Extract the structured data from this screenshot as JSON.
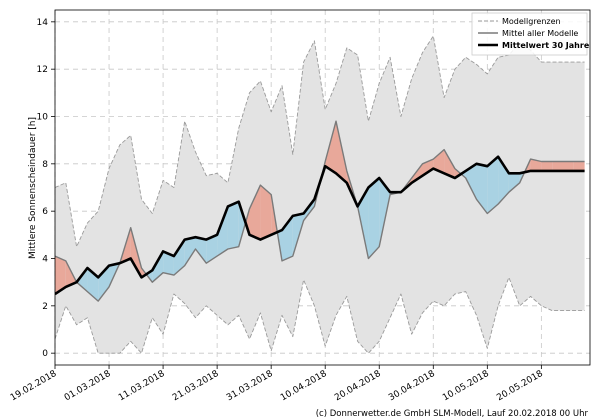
{
  "chart_data": {
    "type": "line",
    "ylabel": "Mittlere Sonnenscheindauer [h]",
    "ylim": [
      -0.5,
      14.5
    ],
    "yticks": [
      0,
      2,
      4,
      6,
      8,
      10,
      12,
      14
    ],
    "xlim": [
      0,
      99
    ],
    "xtick_days": [
      0,
      10,
      20,
      30,
      40,
      50,
      60,
      70,
      80,
      90
    ],
    "xtick_labels": [
      "19.02.2018",
      "01.03.2018",
      "11.03.2018",
      "21.03.2018",
      "31.03.2018",
      "10.04.2018",
      "20.04.2018",
      "30.04.2018",
      "10.05.2018",
      "20.05.2018"
    ],
    "grid": true,
    "legend_position": "top-right",
    "legend": {
      "modellgrenzen": "Modellgrenzen",
      "mittel": "Mittel aller Modelle",
      "mittelwert": "Mittelwert 30 Jahre"
    },
    "credit": "(c) Donnerwetter.de GmbH SLM-Modell, Lauf 20.02.2018 00 Uhr",
    "colors": {
      "band": "#e3e3e3",
      "band_edge": "#9a9a9a",
      "above": "#e8a89a",
      "below": "#a9d2e3",
      "mean_line": "#7a7a7a",
      "clim_line": "#000000",
      "grid": "#c8c8c8"
    },
    "series": [
      {
        "name": "Mittelwert 30 Jahre",
        "x": [
          0,
          2,
          4,
          6,
          8,
          10,
          12,
          14,
          16,
          18,
          20,
          22,
          24,
          26,
          28,
          30,
          32,
          34,
          36,
          38,
          40,
          42,
          44,
          46,
          48,
          50,
          52,
          54,
          56,
          58,
          60,
          62,
          64,
          66,
          68,
          70,
          72,
          74,
          76,
          78,
          80,
          82,
          84,
          86,
          88,
          90,
          92,
          94,
          96,
          98
        ],
        "y": [
          2.5,
          2.8,
          3.0,
          3.6,
          3.2,
          3.7,
          3.8,
          4.0,
          3.2,
          3.5,
          4.3,
          4.1,
          4.8,
          4.9,
          4.8,
          5.0,
          6.2,
          6.4,
          5.0,
          4.8,
          5.0,
          5.2,
          5.8,
          5.9,
          6.5,
          7.9,
          7.6,
          7.2,
          6.2,
          7.0,
          7.4,
          6.8,
          6.8,
          7.2,
          7.5,
          7.8,
          7.6,
          7.4,
          7.7,
          8.0,
          7.9,
          8.3,
          7.6,
          7.6,
          7.7,
          7.7,
          7.7,
          7.7,
          7.7,
          7.7
        ]
      },
      {
        "name": "Mittel aller Modelle",
        "x": [
          0,
          2,
          4,
          6,
          8,
          10,
          12,
          14,
          16,
          18,
          20,
          22,
          24,
          26,
          28,
          30,
          32,
          34,
          36,
          38,
          40,
          42,
          44,
          46,
          48,
          50,
          52,
          54,
          56,
          58,
          60,
          62,
          64,
          66,
          68,
          70,
          72,
          74,
          76,
          78,
          80,
          82,
          84,
          86,
          88,
          90,
          92,
          94,
          96,
          98
        ],
        "y": [
          4.1,
          3.9,
          3.0,
          2.6,
          2.2,
          2.8,
          3.8,
          5.3,
          3.6,
          3.0,
          3.4,
          3.3,
          3.7,
          4.4,
          3.8,
          4.1,
          4.4,
          4.5,
          6.1,
          7.1,
          6.7,
          3.9,
          4.1,
          5.6,
          6.2,
          8.1,
          9.8,
          7.7,
          6.2,
          4.0,
          4.5,
          6.7,
          6.8,
          7.4,
          8.0,
          8.2,
          8.6,
          7.8,
          7.4,
          6.5,
          5.9,
          6.3,
          6.8,
          7.2,
          8.2,
          8.1,
          8.1,
          8.1,
          8.1,
          8.1
        ]
      },
      {
        "name": "Modellgrenzen (oben)",
        "x": [
          0,
          2,
          4,
          6,
          8,
          10,
          12,
          14,
          16,
          18,
          20,
          22,
          24,
          26,
          28,
          30,
          32,
          34,
          36,
          38,
          40,
          42,
          44,
          46,
          48,
          50,
          52,
          54,
          56,
          58,
          60,
          62,
          64,
          66,
          68,
          70,
          72,
          74,
          76,
          78,
          80,
          82,
          84,
          86,
          88,
          90,
          92,
          94,
          96,
          98
        ],
        "y": [
          7.0,
          7.2,
          4.5,
          5.5,
          6.0,
          7.8,
          8.8,
          9.2,
          6.5,
          5.9,
          7.3,
          7.0,
          9.8,
          8.5,
          7.5,
          7.6,
          7.2,
          9.5,
          11.0,
          11.5,
          10.2,
          11.3,
          8.4,
          12.3,
          13.2,
          10.3,
          11.4,
          12.9,
          12.6,
          9.8,
          11.4,
          12.5,
          10.0,
          11.6,
          12.7,
          13.4,
          10.8,
          12.0,
          12.5,
          12.2,
          11.8,
          12.5,
          12.6,
          13.1,
          12.8,
          12.3,
          12.3,
          12.3,
          12.3,
          12.3
        ]
      },
      {
        "name": "Modellgrenzen (unten)",
        "x": [
          0,
          2,
          4,
          6,
          8,
          10,
          12,
          14,
          16,
          18,
          20,
          22,
          24,
          26,
          28,
          30,
          32,
          34,
          36,
          38,
          40,
          42,
          44,
          46,
          48,
          50,
          52,
          54,
          56,
          58,
          60,
          62,
          64,
          66,
          68,
          70,
          72,
          74,
          76,
          78,
          80,
          82,
          84,
          86,
          88,
          90,
          92,
          94,
          96,
          98
        ],
        "y": [
          0.6,
          2.0,
          1.2,
          1.5,
          0.0,
          0.0,
          0.0,
          0.5,
          0.0,
          1.5,
          0.8,
          2.5,
          2.1,
          1.5,
          2.0,
          1.6,
          1.2,
          1.6,
          0.6,
          1.7,
          0.1,
          1.6,
          0.7,
          3.1,
          2.0,
          0.3,
          1.6,
          2.4,
          0.5,
          0.0,
          0.5,
          1.5,
          2.5,
          0.8,
          1.7,
          2.2,
          2.0,
          2.5,
          2.6,
          1.6,
          0.2,
          2.0,
          3.2,
          2.0,
          2.4,
          2.0,
          1.8,
          1.8,
          1.8,
          1.8
        ]
      }
    ]
  }
}
